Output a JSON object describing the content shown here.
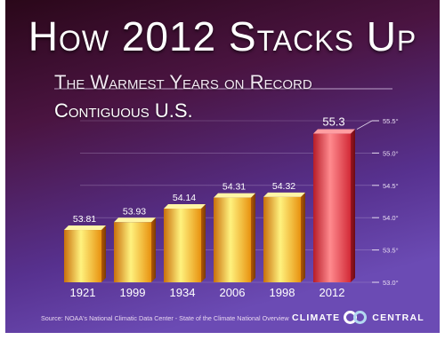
{
  "header": {
    "title": "How 2012 Stacks Up",
    "subtitle": "The Warmest Years on Record",
    "region": "Contiguous U.S."
  },
  "footer": {
    "source": "Source: NOAA's National Climatic Data Center - State of the Climate National Overview",
    "logo_left": "CLIMATE",
    "logo_right": "CENTRAL"
  },
  "chart_data": {
    "type": "bar",
    "title": "How 2012 Stacks Up",
    "subtitle": "The Warmest Years on Record",
    "categories": [
      "1921",
      "1999",
      "1934",
      "2006",
      "1998",
      "2012"
    ],
    "values": [
      53.81,
      53.93,
      54.14,
      54.31,
      54.32,
      55.3
    ],
    "value_labels": [
      "53.81",
      "53.93",
      "54.14",
      "54.31",
      "54.32",
      "55.3"
    ],
    "ylim": [
      53.0,
      55.5
    ],
    "yticks": [
      53.0,
      53.5,
      54.0,
      54.5,
      55.0,
      55.5
    ],
    "ytick_labels": [
      "53.0°",
      "53.5°",
      "54.0°",
      "54.5°",
      "55.0°",
      "55.5°"
    ],
    "yaxis_position": "right",
    "grid": true,
    "highlight_category": "2012",
    "colors": {
      "background_top": "#3a0d2e",
      "background_bottom": "#4c2a96",
      "bar_gold_light": "#fff07a",
      "bar_gold": "#f5ad1a",
      "bar_gold_dark": "#b85e08",
      "bar_red_light": "#ff8c8c",
      "bar_red": "#e33442",
      "bar_red_dark": "#a4151f"
    }
  }
}
